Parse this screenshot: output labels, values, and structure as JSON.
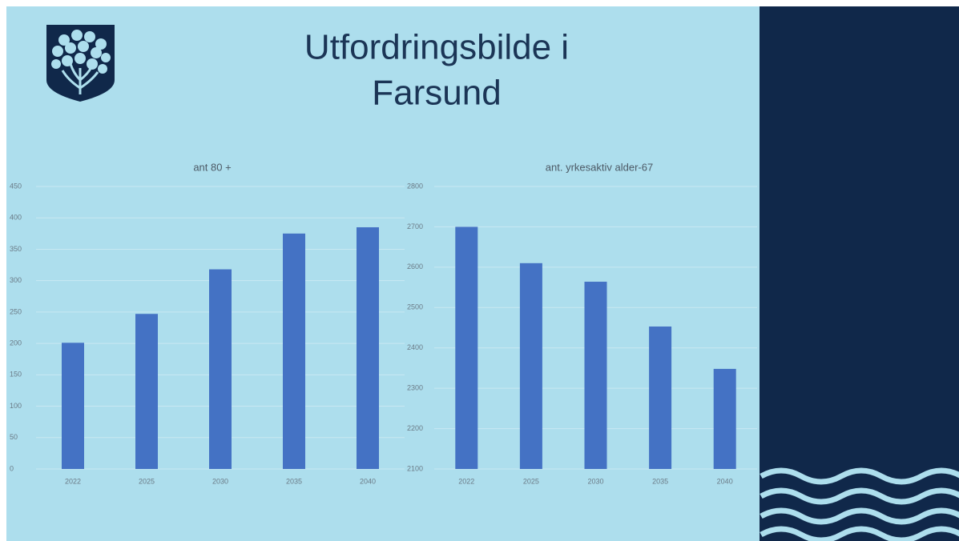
{
  "title_lines": [
    "Utfordringsbilde i",
    "Farsund"
  ],
  "chart_data": [
    {
      "type": "bar",
      "title": "ant 80 +",
      "categories": [
        "2022",
        "2025",
        "2030",
        "2035",
        "2040"
      ],
      "values": [
        201,
        247,
        318,
        375,
        385
      ],
      "color": "#4472c4",
      "ylim": [
        0,
        450
      ],
      "yticks": [
        0,
        50,
        100,
        150,
        200,
        250,
        300,
        350,
        400,
        450
      ],
      "grid": true
    },
    {
      "type": "bar",
      "title": "ant. yrkesaktiv alder-67",
      "categories": [
        "2022",
        "2025",
        "2030",
        "2035",
        "2040"
      ],
      "values": [
        2700,
        2610,
        2564,
        2453,
        2348
      ],
      "color": "#4472c4",
      "ylim": [
        2100,
        2800
      ],
      "yticks": [
        2100,
        2200,
        2300,
        2400,
        2500,
        2600,
        2700,
        2800
      ],
      "grid": true
    }
  ]
}
